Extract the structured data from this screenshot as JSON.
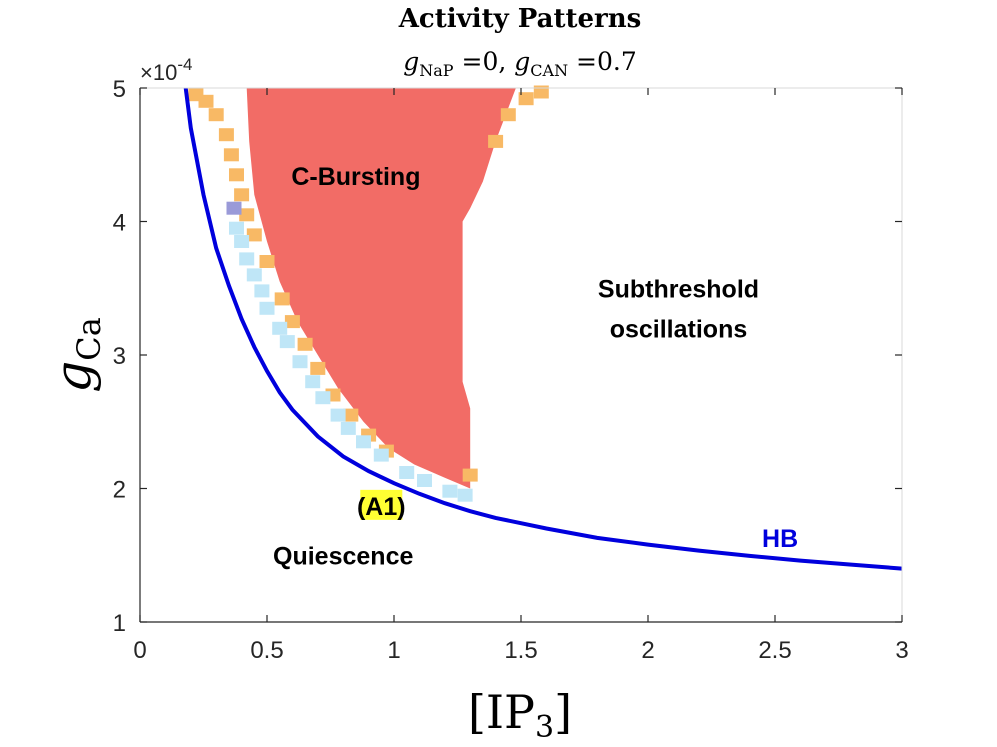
{
  "chart_data": {
    "type": "heatmap",
    "title": "Activity Patterns",
    "subtitle": {
      "g1": "g",
      "g1_sub": "NaP",
      "g1_val": " =0, ",
      "g2": "g",
      "g2_sub": "CAN",
      "g2_val": " =0.7"
    },
    "xlabel": {
      "open": "[IP",
      "sub": "3",
      "close": "]"
    },
    "ylabel": {
      "main": "g",
      "sub": "Ca"
    },
    "y_multiplier": {
      "times": "×10",
      "exp": "-4"
    },
    "xlim": [
      0,
      3
    ],
    "ylim": [
      1,
      5
    ],
    "xticks": [
      0,
      0.5,
      1,
      1.5,
      2,
      2.5,
      3
    ],
    "xtick_labels": [
      "0",
      "0.5",
      "1",
      "1.5",
      "2",
      "2.5",
      "3"
    ],
    "yticks": [
      1,
      2,
      3,
      4,
      5
    ],
    "ytick_labels": [
      "1",
      "2",
      "3",
      "4",
      "5"
    ],
    "colors": {
      "bursting": "#f26c66",
      "orange": "#f4a35f",
      "light_orange": "#f8b965",
      "light_blue": "#bfe6f7",
      "purple": "#9a9ad8",
      "hb_curve": "#0000dd"
    },
    "hb_curve": {
      "name": "HB",
      "x": [
        0.18,
        0.2,
        0.25,
        0.3,
        0.35,
        0.4,
        0.45,
        0.5,
        0.55,
        0.6,
        0.7,
        0.8,
        0.9,
        1.0,
        1.1,
        1.2,
        1.3,
        1.4,
        1.5,
        1.6,
        1.8,
        2.0,
        2.2,
        2.4,
        2.6,
        2.8,
        3.0
      ],
      "y": [
        5.0,
        4.7,
        4.2,
        3.8,
        3.52,
        3.27,
        3.06,
        2.88,
        2.72,
        2.59,
        2.39,
        2.24,
        2.13,
        2.04,
        1.96,
        1.89,
        1.83,
        1.78,
        1.74,
        1.7,
        1.63,
        1.58,
        1.535,
        1.495,
        1.46,
        1.43,
        1.4
      ]
    },
    "bursting_region": {
      "name": "C-Bursting",
      "left_boundary": [
        [
          0.42,
          5.0
        ],
        [
          0.43,
          4.6
        ],
        [
          0.45,
          4.2
        ],
        [
          0.5,
          3.85
        ],
        [
          0.55,
          3.55
        ],
        [
          0.62,
          3.25
        ],
        [
          0.7,
          3.0
        ],
        [
          0.78,
          2.75
        ],
        [
          0.88,
          2.5
        ],
        [
          0.98,
          2.3
        ],
        [
          1.08,
          2.18
        ],
        [
          1.2,
          2.08
        ],
        [
          1.3,
          2.0
        ]
      ],
      "right_boundary": [
        [
          1.3,
          2.0
        ],
        [
          1.3,
          2.6
        ],
        [
          1.27,
          2.8
        ],
        [
          1.27,
          4.0
        ],
        [
          1.3,
          4.1
        ],
        [
          1.35,
          4.3
        ],
        [
          1.4,
          4.6
        ],
        [
          1.45,
          4.85
        ],
        [
          1.48,
          5.0
        ]
      ]
    },
    "orange_cells": [
      [
        0.22,
        4.95
      ],
      [
        0.26,
        4.9
      ],
      [
        0.3,
        4.8
      ],
      [
        0.34,
        4.65
      ],
      [
        0.36,
        4.5
      ],
      [
        0.38,
        4.35
      ],
      [
        0.4,
        4.2
      ],
      [
        0.42,
        4.05
      ],
      [
        0.45,
        3.9
      ],
      [
        0.5,
        3.7
      ],
      [
        0.56,
        3.42
      ],
      [
        0.6,
        3.25
      ],
      [
        0.65,
        3.08
      ],
      [
        0.7,
        2.9
      ],
      [
        0.76,
        2.7
      ],
      [
        0.83,
        2.55
      ],
      [
        0.9,
        2.4
      ],
      [
        0.97,
        2.28
      ],
      [
        1.3,
        2.1
      ],
      [
        1.4,
        4.6
      ],
      [
        1.45,
        4.8
      ],
      [
        1.52,
        4.92
      ],
      [
        1.58,
        4.97
      ]
    ],
    "blue_cells": [
      [
        0.38,
        3.95
      ],
      [
        0.4,
        3.85
      ],
      [
        0.42,
        3.72
      ],
      [
        0.45,
        3.6
      ],
      [
        0.48,
        3.48
      ],
      [
        0.5,
        3.35
      ],
      [
        0.55,
        3.2
      ],
      [
        0.58,
        3.1
      ],
      [
        0.63,
        2.95
      ],
      [
        0.68,
        2.8
      ],
      [
        0.72,
        2.68
      ],
      [
        0.78,
        2.55
      ],
      [
        0.82,
        2.45
      ],
      [
        0.88,
        2.35
      ],
      [
        0.95,
        2.25
      ],
      [
        1.05,
        2.12
      ],
      [
        1.12,
        2.06
      ],
      [
        1.22,
        1.98
      ],
      [
        1.28,
        1.95
      ]
    ],
    "purple_cells": [
      [
        0.37,
        4.1
      ]
    ],
    "annotations": [
      {
        "text": "C-Bursting",
        "x": 0.85,
        "y": 4.34
      },
      {
        "text": "Subthreshold",
        "x": 2.12,
        "y": 3.5
      },
      {
        "text": "oscillations",
        "x": 2.12,
        "y": 3.2
      },
      {
        "text": "Quiescence",
        "x": 0.8,
        "y": 1.5
      },
      {
        "text": "HB",
        "x": 2.52,
        "y": 1.63
      },
      {
        "text": "(A1)",
        "x": 0.95,
        "y": 1.87,
        "highlight": "#ffff33"
      }
    ]
  }
}
